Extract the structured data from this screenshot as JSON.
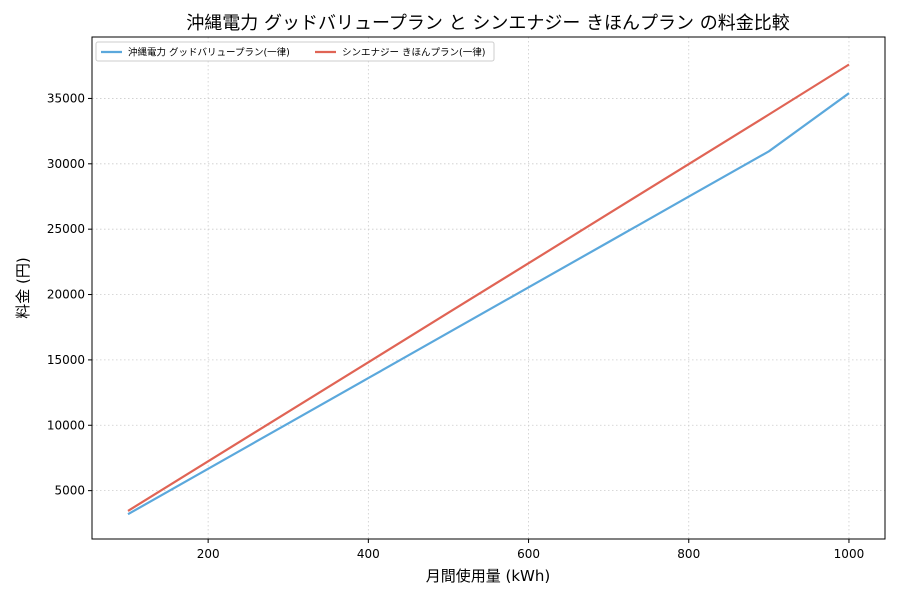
{
  "chart_data": {
    "type": "line",
    "title": "沖縄電力 グッドバリュープラン と シンエナジー きほんプラン の料金比較",
    "xlabel": "月間使用量 (kWh)",
    "ylabel": "料金 (円)",
    "xlim": [
      55,
      1045
    ],
    "ylim": [
      1300,
      39700
    ],
    "xticks": [
      200,
      400,
      600,
      800,
      1000
    ],
    "yticks": [
      5000,
      10000,
      15000,
      20000,
      25000,
      30000,
      35000
    ],
    "grid": true,
    "legend": "top-left",
    "series": [
      {
        "name": "沖縄電力 グッドバリュープラン(一律)",
        "color": "#5ba8dc",
        "x": [
          100,
          200,
          300,
          400,
          500,
          600,
          700,
          800,
          900,
          1000
        ],
        "values": [
          3200,
          6670,
          10140,
          13610,
          17080,
          20550,
          24020,
          27490,
          30960,
          35400
        ]
      },
      {
        "name": "シンエナジー きほんプラン(一律)",
        "color": "#e06455",
        "x": [
          100,
          200,
          300,
          400,
          500,
          600,
          700,
          800,
          900,
          1000
        ],
        "values": [
          3450,
          7240,
          11030,
          14820,
          18610,
          22400,
          26190,
          29980,
          33770,
          37600
        ]
      }
    ]
  }
}
